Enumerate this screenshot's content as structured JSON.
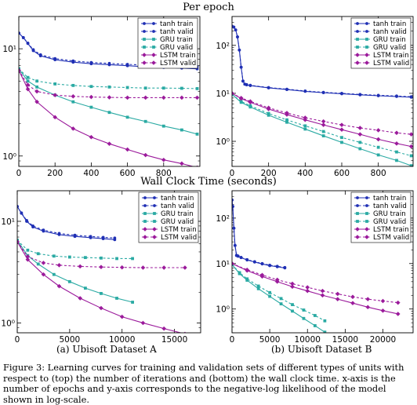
{
  "headings": {
    "top": "Per epoch",
    "bottom": "Wall Clock Time (seconds)"
  },
  "sublabels": {
    "a": "(a) Ubisoft Dataset A",
    "b": "(b) Ubisoft Dataset B"
  },
  "caption": "Figure 3: Learning curves for training and validation sets of different types of units with respect to (top) the number of iterations and (bottom) the wall clock time. x-axis is the number of epochs and y-axis corresponds to the negative-log likelihood of the model shown in log-scale.",
  "colors": {
    "tanh": "#1f2fb4",
    "gru": "#2aaaa3",
    "lstm": "#9b1a9b"
  },
  "chart_data": [
    {
      "type": "line",
      "id": "epoch-A",
      "yscale": "log",
      "xlim": [
        0,
        1000
      ],
      "ylim": [
        0.8,
        20
      ],
      "xticks": [
        0,
        200,
        400,
        600,
        800
      ],
      "xticklabels": [
        "0",
        "200",
        "400",
        "600",
        "800"
      ],
      "yticks": [
        1,
        10
      ],
      "yticklabels": [
        "10⁰",
        "10¹"
      ],
      "legend_position": "top-right",
      "series": [
        {
          "name": "tanh train",
          "color": "#1f2fb4",
          "dash": false,
          "x": [
            0,
            25,
            50,
            80,
            120,
            200,
            300,
            400,
            500,
            600,
            700,
            800,
            900,
            985
          ],
          "y": [
            14,
            12.7,
            11.2,
            9.6,
            8.6,
            7.9,
            7.5,
            7.25,
            7.1,
            6.95,
            6.8,
            6.7,
            6.6,
            6.5
          ]
        },
        {
          "name": "tanh valid",
          "color": "#1f2fb4",
          "dash": true,
          "x": [
            0,
            25,
            50,
            80,
            120,
            200,
            300,
            400,
            500,
            600,
            700,
            800,
            900,
            985
          ],
          "y": [
            14,
            12.7,
            11.3,
            9.8,
            8.8,
            8.1,
            7.7,
            7.45,
            7.3,
            7.15,
            7.05,
            6.95,
            6.85,
            6.8
          ]
        },
        {
          "name": "GRU train",
          "color": "#2aaaa3",
          "dash": false,
          "x": [
            0,
            50,
            100,
            200,
            300,
            400,
            500,
            600,
            700,
            800,
            900,
            985
          ],
          "y": [
            6.5,
            5.0,
            4.4,
            3.7,
            3.2,
            2.85,
            2.55,
            2.3,
            2.1,
            1.9,
            1.75,
            1.6
          ]
        },
        {
          "name": "GRU valid",
          "color": "#2aaaa3",
          "dash": true,
          "x": [
            0,
            50,
            100,
            200,
            300,
            400,
            500,
            600,
            700,
            800,
            900,
            985
          ],
          "y": [
            6.5,
            5.4,
            5.0,
            4.7,
            4.55,
            4.45,
            4.4,
            4.35,
            4.3,
            4.3,
            4.28,
            4.25
          ]
        },
        {
          "name": "LSTM train",
          "color": "#9b1a9b",
          "dash": false,
          "x": [
            0,
            50,
            100,
            200,
            300,
            400,
            500,
            600,
            700,
            800,
            900,
            985
          ],
          "y": [
            6.3,
            4.2,
            3.2,
            2.3,
            1.8,
            1.5,
            1.3,
            1.15,
            1.02,
            0.92,
            0.85,
            0.78
          ]
        },
        {
          "name": "LSTM valid",
          "color": "#9b1a9b",
          "dash": true,
          "x": [
            0,
            50,
            100,
            200,
            300,
            400,
            500,
            600,
            700,
            800,
            900,
            985
          ],
          "y": [
            6.3,
            4.6,
            4.0,
            3.7,
            3.6,
            3.55,
            3.52,
            3.5,
            3.5,
            3.5,
            3.5,
            3.5
          ]
        }
      ]
    },
    {
      "type": "line",
      "id": "epoch-B",
      "yscale": "log",
      "xlim": [
        0,
        990
      ],
      "ylim": [
        0.3,
        400
      ],
      "xticks": [
        0,
        200,
        400,
        600,
        800
      ],
      "xticklabels": [
        "0",
        "200",
        "400",
        "600",
        "800"
      ],
      "yticks": [
        1,
        10,
        100
      ],
      "yticklabels": [
        "10⁰",
        "10¹",
        "10²"
      ],
      "legend_position": "top-right",
      "series": [
        {
          "name": "tanh train",
          "color": "#1f2fb4",
          "dash": false,
          "x": [
            0,
            10,
            20,
            30,
            40,
            50,
            60,
            70,
            80,
            100,
            200,
            300,
            400,
            500,
            600,
            700,
            800,
            900,
            980
          ],
          "y": [
            250,
            240,
            210,
            150,
            80,
            35,
            18,
            15.5,
            15,
            14.5,
            13,
            12,
            11,
            10.3,
            9.8,
            9.3,
            8.9,
            8.6,
            8.3
          ]
        },
        {
          "name": "tanh valid",
          "color": "#1f2fb4",
          "dash": true,
          "x": [
            0,
            10,
            20,
            30,
            40,
            50,
            60,
            70,
            80,
            100,
            200,
            300,
            400,
            500,
            600,
            700,
            800,
            900,
            980
          ],
          "y": [
            250,
            240,
            210,
            150,
            80,
            35,
            18,
            15.5,
            15.2,
            14.7,
            13.2,
            12.2,
            11.2,
            10.5,
            10,
            9.5,
            9.1,
            8.8,
            8.5
          ]
        },
        {
          "name": "GRU train",
          "color": "#2aaaa3",
          "dash": false,
          "x": [
            0,
            50,
            100,
            200,
            300,
            400,
            500,
            600,
            700,
            800,
            900,
            980
          ],
          "y": [
            9.5,
            6.5,
            5.2,
            3.5,
            2.5,
            1.8,
            1.3,
            0.95,
            0.7,
            0.52,
            0.4,
            0.31
          ]
        },
        {
          "name": "GRU valid",
          "color": "#2aaaa3",
          "dash": true,
          "x": [
            0,
            50,
            100,
            200,
            300,
            400,
            500,
            600,
            700,
            800,
            900,
            980
          ],
          "y": [
            9.5,
            6.8,
            5.5,
            3.8,
            2.8,
            2.1,
            1.6,
            1.2,
            0.95,
            0.75,
            0.6,
            0.5
          ]
        },
        {
          "name": "LSTM train",
          "color": "#9b1a9b",
          "dash": false,
          "x": [
            0,
            50,
            100,
            200,
            300,
            400,
            500,
            600,
            700,
            800,
            900,
            980
          ],
          "y": [
            10,
            7.8,
            6.5,
            4.7,
            3.6,
            2.8,
            2.2,
            1.75,
            1.4,
            1.1,
            0.9,
            0.78
          ]
        },
        {
          "name": "LSTM valid",
          "color": "#9b1a9b",
          "dash": true,
          "x": [
            0,
            50,
            100,
            200,
            300,
            400,
            500,
            600,
            700,
            800,
            900,
            980
          ],
          "y": [
            10,
            8.0,
            6.8,
            5.0,
            3.9,
            3.1,
            2.6,
            2.2,
            1.9,
            1.7,
            1.5,
            1.4
          ]
        }
      ]
    },
    {
      "type": "line",
      "id": "time-A",
      "yscale": "log",
      "xlim": [
        0,
        17500
      ],
      "ylim": [
        0.8,
        20
      ],
      "xticks": [
        0,
        5000,
        10000,
        15000
      ],
      "xticklabels": [
        "0",
        "5000",
        "10000",
        "15000"
      ],
      "yticks": [
        1,
        10
      ],
      "yticklabels": [
        "10⁰",
        "10¹"
      ],
      "legend_position": "top-right",
      "series": [
        {
          "name": "tanh train",
          "color": "#1f2fb4",
          "dash": false,
          "x": [
            0,
            400,
            900,
            1500,
            2500,
            4000,
            5500,
            7000,
            8200,
            9300
          ],
          "y": [
            14,
            12,
            10,
            8.8,
            8,
            7.4,
            7.1,
            6.9,
            6.75,
            6.6
          ]
        },
        {
          "name": "tanh valid",
          "color": "#1f2fb4",
          "dash": true,
          "x": [
            0,
            400,
            900,
            1500,
            2500,
            4000,
            5500,
            7000,
            8200,
            9300
          ],
          "y": [
            14,
            12.1,
            10.2,
            9,
            8.2,
            7.6,
            7.3,
            7.1,
            6.95,
            6.85
          ]
        },
        {
          "name": "GRU train",
          "color": "#2aaaa3",
          "dash": false,
          "x": [
            0,
            1000,
            2000,
            3500,
            5000,
            6500,
            8000,
            9500,
            11000
          ],
          "y": [
            6.5,
            4.6,
            3.8,
            3.0,
            2.55,
            2.2,
            1.95,
            1.75,
            1.6
          ]
        },
        {
          "name": "GRU valid",
          "color": "#2aaaa3",
          "dash": true,
          "x": [
            0,
            1000,
            2000,
            3500,
            5000,
            6500,
            8000,
            9500,
            11000
          ],
          "y": [
            6.5,
            5.2,
            4.8,
            4.55,
            4.45,
            4.4,
            4.35,
            4.3,
            4.3
          ]
        },
        {
          "name": "LSTM train",
          "color": "#9b1a9b",
          "dash": false,
          "x": [
            0,
            1000,
            2500,
            4000,
            6000,
            8000,
            10000,
            12000,
            14000,
            16000
          ],
          "y": [
            6.3,
            4.2,
            3.0,
            2.3,
            1.75,
            1.4,
            1.15,
            1.0,
            0.88,
            0.78
          ]
        },
        {
          "name": "LSTM valid",
          "color": "#9b1a9b",
          "dash": true,
          "x": [
            0,
            1000,
            2500,
            4000,
            6000,
            8000,
            10000,
            12000,
            14000,
            16000
          ],
          "y": [
            6.3,
            4.5,
            3.9,
            3.7,
            3.6,
            3.55,
            3.52,
            3.5,
            3.5,
            3.5
          ]
        }
      ]
    },
    {
      "type": "line",
      "id": "time-B",
      "yscale": "log",
      "xlim": [
        0,
        24000
      ],
      "ylim": [
        0.3,
        400
      ],
      "xticks": [
        0,
        5000,
        10000,
        15000,
        20000
      ],
      "xticklabels": [
        "0",
        "5000",
        "10000",
        "15000",
        "20000"
      ],
      "yticks": [
        1,
        10,
        100
      ],
      "yticklabels": [
        "10⁰",
        "10¹",
        "10²"
      ],
      "legend_position": "top-right",
      "series": [
        {
          "name": "tanh train",
          "color": "#1f2fb4",
          "dash": false,
          "x": [
            0,
            100,
            250,
            400,
            600,
            800,
            1200,
            2000,
            3000,
            4000,
            5000,
            6000,
            7000
          ],
          "y": [
            250,
            180,
            60,
            25,
            15,
            14.5,
            13.5,
            12,
            10.8,
            9.8,
            9.0,
            8.5,
            8.0
          ]
        },
        {
          "name": "tanh valid",
          "color": "#1f2fb4",
          "dash": true,
          "x": [
            0,
            100,
            250,
            400,
            600,
            800,
            1200,
            2000,
            3000,
            4000,
            5000,
            6000,
            7000
          ],
          "y": [
            250,
            180,
            60,
            25,
            15.2,
            14.7,
            13.7,
            12.2,
            11,
            10,
            9.2,
            8.7,
            8.2
          ]
        },
        {
          "name": "GRU train",
          "color": "#2aaaa3",
          "dash": false,
          "x": [
            0,
            1000,
            2000,
            3500,
            5000,
            6500,
            8000,
            9500,
            11000,
            12300
          ],
          "y": [
            9.5,
            6.0,
            4.3,
            2.8,
            1.9,
            1.3,
            0.9,
            0.62,
            0.43,
            0.31
          ]
        },
        {
          "name": "GRU valid",
          "color": "#2aaaa3",
          "dash": true,
          "x": [
            0,
            1000,
            2000,
            3500,
            5000,
            6500,
            8000,
            9500,
            11000,
            12300
          ],
          "y": [
            9.5,
            6.3,
            4.6,
            3.2,
            2.3,
            1.7,
            1.25,
            0.95,
            0.72,
            0.55
          ]
        },
        {
          "name": "LSTM train",
          "color": "#9b1a9b",
          "dash": false,
          "x": [
            0,
            2000,
            4000,
            6000,
            8000,
            10000,
            12000,
            14000,
            16000,
            18000,
            20000,
            22000
          ],
          "y": [
            10,
            7.0,
            5.2,
            4.0,
            3.1,
            2.5,
            2.0,
            1.65,
            1.35,
            1.1,
            0.92,
            0.78
          ]
        },
        {
          "name": "LSTM valid",
          "color": "#9b1a9b",
          "dash": true,
          "x": [
            0,
            2000,
            4000,
            6000,
            8000,
            10000,
            12000,
            14000,
            16000,
            18000,
            20000,
            22000
          ],
          "y": [
            10,
            7.3,
            5.6,
            4.4,
            3.6,
            3.0,
            2.5,
            2.15,
            1.85,
            1.65,
            1.5,
            1.38
          ]
        }
      ]
    }
  ]
}
